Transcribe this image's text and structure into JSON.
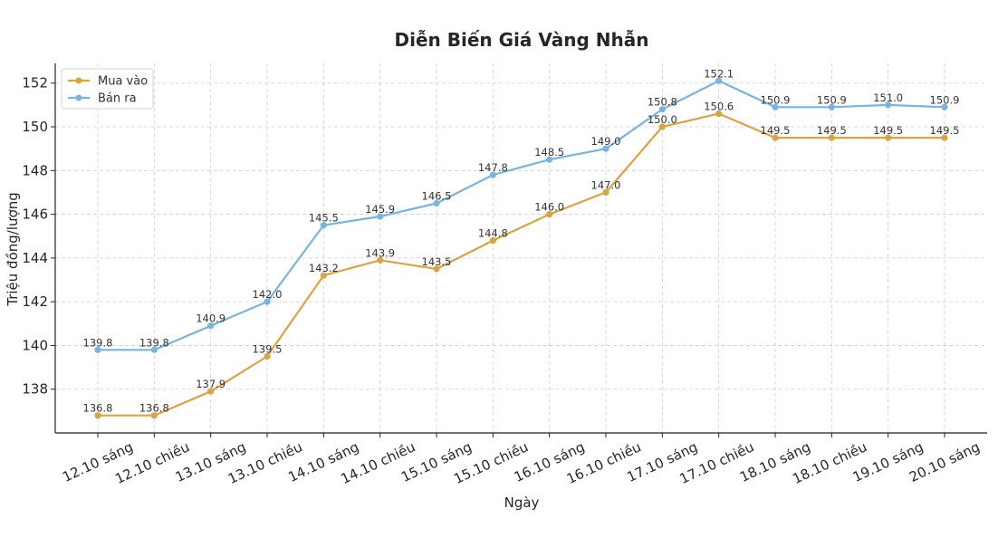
{
  "chart_data": {
    "type": "line",
    "title": "Diễn Biến Giá Vàng Nhẫn",
    "xlabel": "Ngày",
    "ylabel": "Triệu đồng/lượng",
    "categories": [
      "12.10 sáng",
      "12.10 chiều",
      "13.10 sáng",
      "13.10 chiều",
      "14.10 sáng",
      "14.10 chiều",
      "15.10 sáng",
      "15.10 chiều",
      "16.10 sáng",
      "16.10 chiều",
      "17.10 sáng",
      "17.10 chiều",
      "18.10 sáng",
      "18.10 chiều",
      "19.10 sáng",
      "20.10 sáng"
    ],
    "series": [
      {
        "name": "Mua vào",
        "color": "#d9a441",
        "values": [
          136.8,
          136.8,
          137.9,
          139.5,
          143.2,
          143.9,
          143.5,
          144.8,
          146.0,
          147.0,
          150.0,
          150.6,
          149.5,
          149.5,
          149.5,
          149.5
        ],
        "labels": [
          "136.8",
          "136.8",
          "137.9",
          "139.5",
          "143.2",
          "143.9",
          "143.5",
          "144.8",
          "146.0",
          "147.0",
          "150.0",
          "150.6",
          "149.5",
          "149.5",
          "149.5",
          "149.5"
        ]
      },
      {
        "name": "Bán ra",
        "color": "#79b4e0",
        "values": [
          139.8,
          139.8,
          140.9,
          142.0,
          145.5,
          145.9,
          146.5,
          147.8,
          148.5,
          149.0,
          150.8,
          152.1,
          150.9,
          150.9,
          151.0,
          150.9
        ],
        "labels": [
          "139.8",
          "139.8",
          "140.9",
          "142.0",
          "145.5",
          "145.9",
          "146.5",
          "147.8",
          "148.5",
          "149.0",
          "150.8",
          "152.1",
          "150.9",
          "150.9",
          "151.0",
          "150.9"
        ]
      }
    ],
    "ylim": [
      136.0,
      152.9
    ],
    "yticks": [
      138,
      140,
      142,
      144,
      146,
      148,
      150,
      152
    ],
    "ytick_labels": [
      "138",
      "140",
      "142",
      "144",
      "146",
      "148",
      "150",
      "152"
    ],
    "grid": true,
    "legend_position": "top-left"
  }
}
